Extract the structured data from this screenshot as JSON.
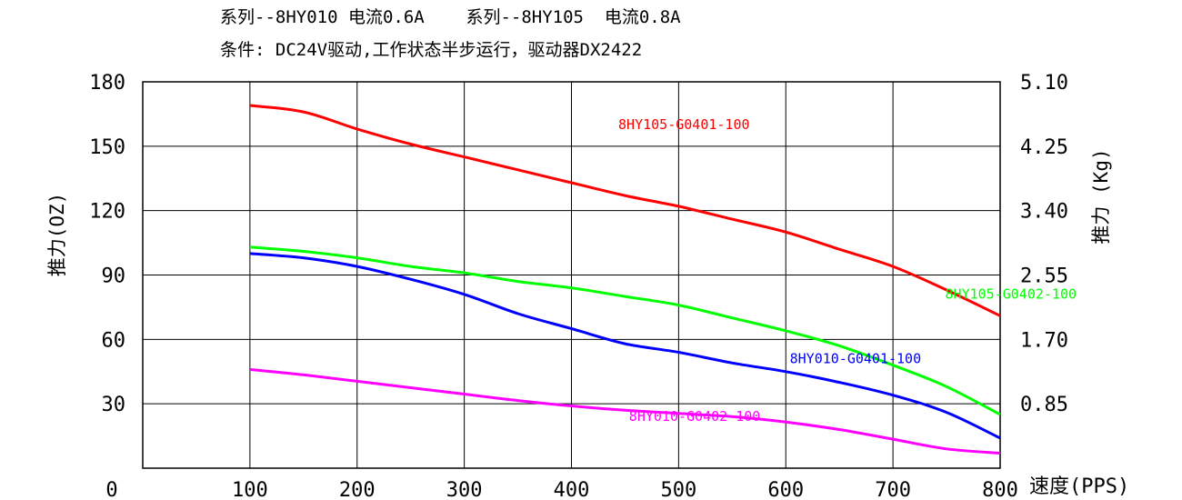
{
  "header": {
    "line1": "系列--8HY010 电流0.6A    系列--8HY105  电流0.8A",
    "line2": "条件: DC24V驱动,工作状态半步运行，驱动器DX2422"
  },
  "chart_data": {
    "type": "line",
    "ylabel": "推力(OZ)",
    "y2label": "推力 (Kg)",
    "xlabel": "速度(PPS)",
    "xlim": [
      0,
      800
    ],
    "ylim": [
      0,
      180
    ],
    "y2lim": [
      0,
      5.1
    ],
    "grid": true,
    "x_tick_labels": [
      "0",
      "100",
      "200",
      "300",
      "400",
      "500",
      "600",
      "700",
      "800"
    ],
    "y_tick_labels": [
      "30",
      "60",
      "90",
      "120",
      "150",
      "180"
    ],
    "y2_tick_labels": [
      "0.85",
      "1.70",
      "2.55",
      "3.40",
      "4.25",
      "5.10"
    ],
    "series": [
      {
        "name": "8HY105-G0401-100",
        "color": "#ff0000",
        "x": [
          100,
          150,
          200,
          250,
          300,
          350,
          400,
          450,
          500,
          550,
          600,
          650,
          700,
          750,
          800
        ],
        "y": [
          169,
          166,
          158,
          151,
          145,
          139,
          133,
          127,
          122,
          116,
          110,
          102,
          94,
          83,
          71
        ],
        "label_x": 505,
        "label_y": 158
      },
      {
        "name": "8HY105-G0402-100",
        "color": "#00ff00",
        "x": [
          100,
          150,
          200,
          250,
          300,
          350,
          400,
          450,
          500,
          550,
          600,
          650,
          700,
          750,
          800
        ],
        "y": [
          103,
          101,
          98,
          94,
          91,
          87,
          84,
          80,
          76,
          70,
          64,
          57,
          48,
          38,
          25
        ],
        "label_x": 810,
        "label_y": 79
      },
      {
        "name": "8HY010-G0401-100",
        "color": "#0000ff",
        "x": [
          100,
          150,
          200,
          250,
          300,
          350,
          400,
          450,
          500,
          550,
          600,
          650,
          700,
          750,
          800
        ],
        "y": [
          100,
          98,
          94,
          88,
          81,
          72,
          65,
          58,
          54,
          49,
          45,
          40,
          34,
          26,
          14
        ],
        "label_x": 665,
        "label_y": 49
      },
      {
        "name": "8HY010-G0402-100",
        "color": "#ff00ff",
        "x": [
          100,
          150,
          200,
          250,
          300,
          350,
          400,
          450,
          500,
          550,
          600,
          650,
          700,
          750,
          800
        ],
        "y": [
          46,
          43.5,
          40.5,
          37.5,
          34.5,
          31.5,
          29,
          27,
          25.5,
          24,
          21.5,
          18,
          13.5,
          9,
          7
        ],
        "label_x": 515,
        "label_y": 22
      }
    ]
  }
}
